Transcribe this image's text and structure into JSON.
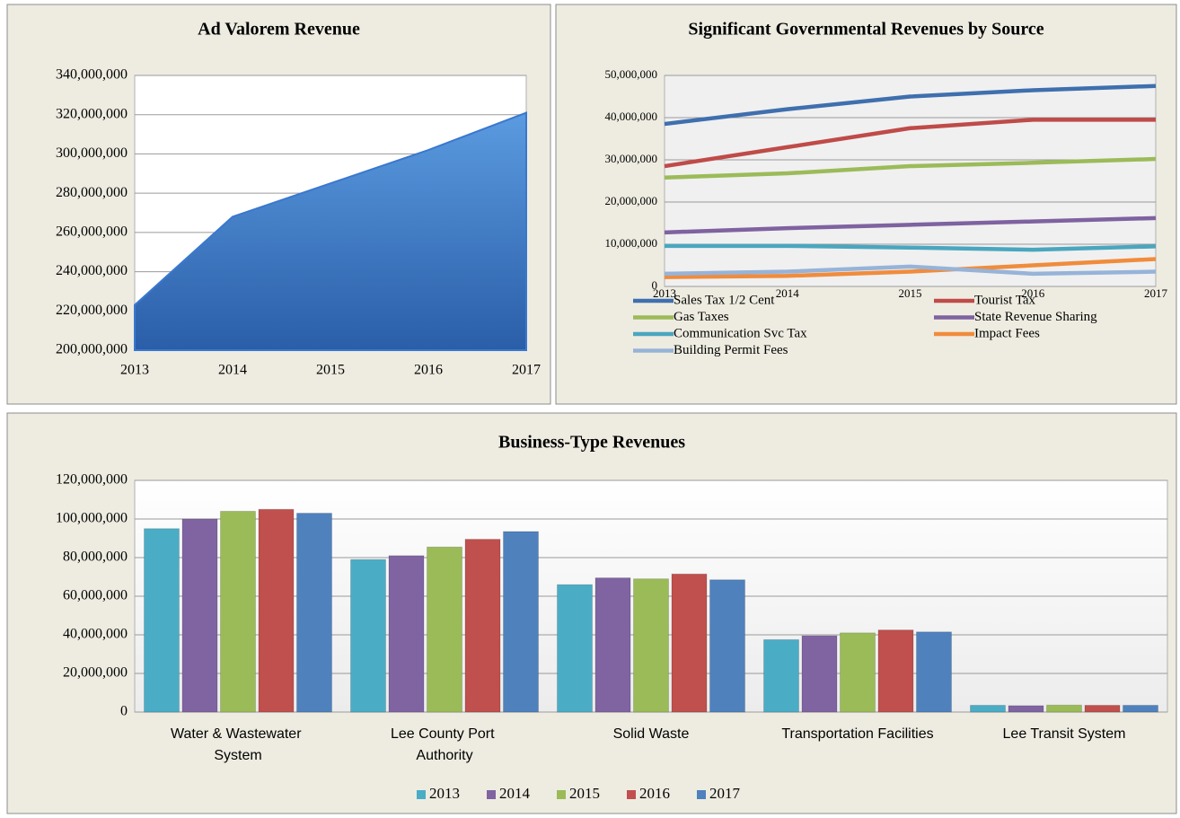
{
  "chart_data": [
    {
      "type": "area",
      "title": "Ad Valorem Revenue",
      "categories": [
        "2013",
        "2014",
        "2015",
        "2016",
        "2017"
      ],
      "values": [
        223000000,
        268000000,
        285000000,
        302000000,
        321000000
      ],
      "color": "#3a78cf",
      "ylim": [
        200000000,
        340000000
      ],
      "yticks": [
        {
          "value": 200000000,
          "label": "200,000,000"
        },
        {
          "value": 220000000,
          "label": "220,000,000"
        },
        {
          "value": 240000000,
          "label": "240,000,000"
        },
        {
          "value": 260000000,
          "label": "260,000,000"
        },
        {
          "value": 280000000,
          "label": "280,000,000"
        },
        {
          "value": 300000000,
          "label": "300,000,000"
        },
        {
          "value": 320000000,
          "label": "320,000,000"
        },
        {
          "value": 340000000,
          "label": "340,000,000"
        }
      ],
      "grid": true
    },
    {
      "type": "line",
      "title": "Significant Governmental Revenues by Source",
      "categories": [
        "2013",
        "2014",
        "2015",
        "2016",
        "2017"
      ],
      "series": [
        {
          "name": "Sales Tax 1/2 Cent",
          "color": "#3f6fae",
          "values": [
            38500000,
            42000000,
            45000000,
            46500000,
            47500000
          ]
        },
        {
          "name": "Tourist Tax",
          "color": "#bf4b48",
          "values": [
            28500000,
            33000000,
            37500000,
            39500000,
            39500000
          ]
        },
        {
          "name": "Gas Taxes",
          "color": "#9bbb59",
          "values": [
            25800000,
            26800000,
            28500000,
            29300000,
            30200000
          ]
        },
        {
          "name": "State Revenue Sharing",
          "color": "#7f62a0",
          "values": [
            12800000,
            13800000,
            14600000,
            15400000,
            16200000
          ]
        },
        {
          "name": "Communication Svc Tax",
          "color": "#4aa6bf",
          "values": [
            9600000,
            9600000,
            9200000,
            8700000,
            9500000
          ]
        },
        {
          "name": "Impact Fees",
          "color": "#f08c3c",
          "values": [
            2200000,
            2500000,
            3500000,
            5000000,
            6500000
          ]
        },
        {
          "name": "Building Permit Fees",
          "color": "#97b3d8",
          "values": [
            3000000,
            3500000,
            4700000,
            3000000,
            3500000
          ]
        }
      ],
      "ylim": [
        0,
        50000000
      ],
      "yticks": [
        0,
        {
          "value": 10000000,
          "label": "10,000,000"
        },
        {
          "value": 20000000,
          "label": "20,000,000"
        },
        {
          "value": 30000000,
          "label": "30,000,000"
        },
        {
          "value": 40000000,
          "label": "40,000,000"
        },
        {
          "value": 50000000,
          "label": "50,000,000"
        }
      ],
      "grid": true,
      "legend": "bottom"
    },
    {
      "type": "bar",
      "title": "Business-Type Revenues",
      "categories": [
        "Water & Wastewater System",
        "Lee County Port Authority",
        "Solid Waste",
        "Transportation Facilities",
        "Lee Transit System"
      ],
      "series": [
        {
          "name": "2013",
          "color": "#4bacc6",
          "values": [
            95000000,
            79000000,
            66000000,
            37500000,
            3500000
          ]
        },
        {
          "name": "2014",
          "color": "#8064a2",
          "values": [
            100000000,
            81000000,
            69500000,
            39500000,
            3300000
          ]
        },
        {
          "name": "2015",
          "color": "#9bbb59",
          "values": [
            104000000,
            85500000,
            69000000,
            41000000,
            3600000
          ]
        },
        {
          "name": "2016",
          "color": "#c0504d",
          "values": [
            105000000,
            89500000,
            71500000,
            42500000,
            3500000
          ]
        },
        {
          "name": "2017",
          "color": "#4f81bd",
          "values": [
            103000000,
            93500000,
            68500000,
            41500000,
            3500000
          ]
        }
      ],
      "ylim": [
        0,
        120000000
      ],
      "yticks": [
        0,
        {
          "value": 20000000,
          "label": "20,000,000"
        },
        {
          "value": 40000000,
          "label": "40,000,000"
        },
        {
          "value": 60000000,
          "label": "60,000,000"
        },
        {
          "value": 80000000,
          "label": "80,000,000"
        },
        {
          "value": 100000000,
          "label": "100,000,000"
        },
        {
          "value": 120000000,
          "label": "120,000,000"
        }
      ],
      "grid": true,
      "legend": "bottom"
    }
  ]
}
